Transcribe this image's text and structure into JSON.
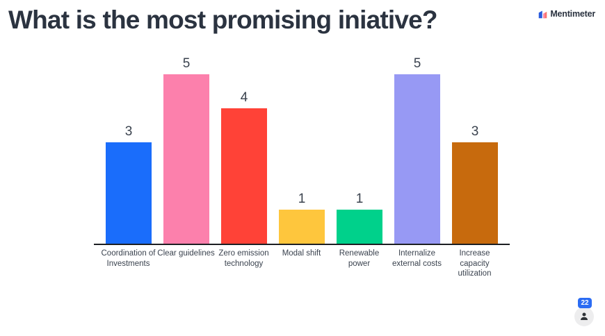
{
  "header": {
    "title": "What is the most promising iniative?",
    "brand": "Mentimeter"
  },
  "chart_data": {
    "type": "bar",
    "title": "What is the most promising iniative?",
    "categories": [
      "Coordination of Investments",
      "Clear guidelines",
      "Zero emission technology",
      "Modal shift",
      "Renewable power",
      "Internalize external costs",
      "Increase capacity utilization"
    ],
    "values": [
      3,
      5,
      4,
      1,
      1,
      5,
      3
    ],
    "bar_colors": [
      "#1a6dfb",
      "#fc80ac",
      "#ff4237",
      "#fec63d",
      "#00d18b",
      "#9799f4",
      "#c76a0d"
    ],
    "ylim": [
      0,
      5
    ],
    "value_labels_shown": true,
    "grid": false,
    "legend": "none",
    "axis_line_color": "#1c1e22"
  },
  "footer": {
    "participant_count": "22",
    "participant_badge_color": "#2b6cf3"
  },
  "icons": {
    "brand_mark": "mentimeter-logo-icon",
    "participant": "person-icon"
  }
}
